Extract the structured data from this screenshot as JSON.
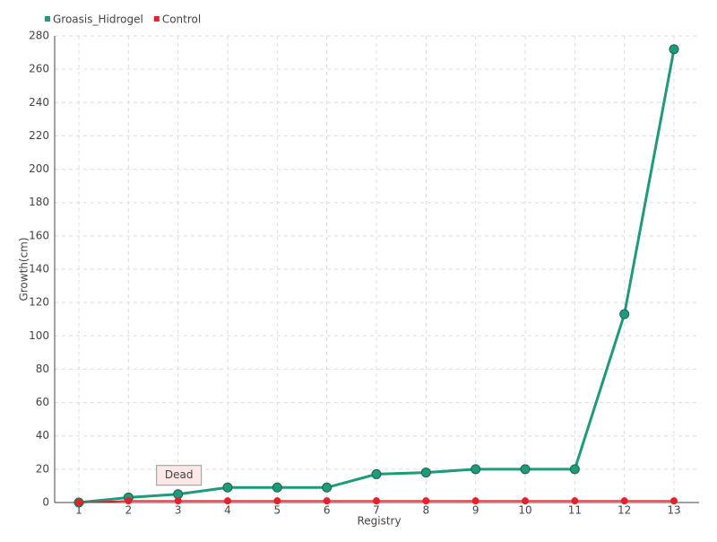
{
  "chart_data": {
    "type": "line",
    "x_label": "Registry",
    "y_label": "Growth(cm)",
    "categories": [
      "1",
      "2",
      "3",
      "4",
      "5",
      "6",
      "7",
      "8",
      "9",
      "10",
      "11",
      "12",
      "13"
    ],
    "series": [
      {
        "name": "Groasis_Hidrogel",
        "color": "#1f9a7a",
        "values": [
          0,
          3,
          5,
          9,
          9,
          9,
          17,
          18,
          20,
          20,
          20,
          113,
          272
        ]
      },
      {
        "name": "Control",
        "color": "#e8202a",
        "values": [
          0,
          1,
          1,
          1,
          1,
          1,
          1,
          1,
          1,
          1,
          1,
          1,
          1
        ]
      }
    ],
    "annotations": [
      {
        "text": "Dead",
        "x": "3"
      }
    ],
    "ylim": [
      0,
      280
    ],
    "yticks": [
      0,
      20,
      40,
      60,
      80,
      100,
      120,
      140,
      160,
      180,
      200,
      220,
      240,
      260,
      280
    ],
    "grid": true,
    "legend": "top-left"
  }
}
